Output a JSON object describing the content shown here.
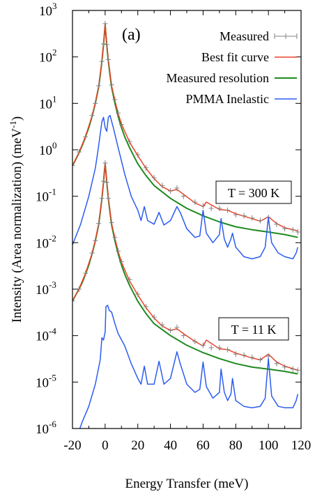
{
  "chart_data": {
    "type": "line",
    "panel_label": "(a)",
    "xlabel": "Energy Transfer   (meV)",
    "ylabel": "Intensity   (Area normalization)   (meV",
    "ylabel_sup": "-1",
    "ylabel_close": ")",
    "xlim": [
      -20,
      120
    ],
    "ylim": [
      1e-06,
      1000
    ],
    "yscale": "log",
    "x_ticks": [
      -20,
      0,
      20,
      40,
      60,
      80,
      100,
      120
    ],
    "y_ticks": [
      {
        "value": 1000,
        "base": "10",
        "exp": "3"
      },
      {
        "value": 100,
        "base": "10",
        "exp": "2"
      },
      {
        "value": 10,
        "base": "10",
        "exp": "1"
      },
      {
        "value": 1,
        "base": "10",
        "exp": "0"
      },
      {
        "value": 0.1,
        "base": "10",
        "exp": "-1"
      },
      {
        "value": 0.01,
        "base": "10",
        "exp": "-2"
      },
      {
        "value": 0.001,
        "base": "10",
        "exp": "-3"
      },
      {
        "value": 0.0001,
        "base": "10",
        "exp": "-4"
      },
      {
        "value": 1e-05,
        "base": "10",
        "exp": "-5"
      },
      {
        "value": 1e-06,
        "base": "10",
        "exp": "-6"
      }
    ],
    "legend": [
      {
        "name": "Measured",
        "color": "#808080",
        "style": "errorbar"
      },
      {
        "name": "Best fit curve",
        "color": "#e8442a",
        "style": "line"
      },
      {
        "name": "Measured resolution",
        "color": "#1e8a1e",
        "style": "line"
      },
      {
        "name": "PMMA Inelastic",
        "color": "#2b5cf0",
        "style": "line"
      }
    ],
    "annotations": [
      {
        "text": "T = 300 K",
        "x": 91,
        "y": 0.2
      },
      {
        "text": "T = 11 K",
        "x": 93,
        "y": 0.0002
      }
    ],
    "series": [
      {
        "name": "Measured resolution",
        "temperature": "T = 300 K",
        "color": "#1e8a1e",
        "x": [
          -20,
          -18,
          -16,
          -14,
          -12,
          -10,
          -8,
          -6,
          -4,
          -3,
          -2,
          -1,
          -0.5,
          0,
          0.5,
          1,
          2,
          3,
          4,
          6,
          8,
          10,
          12,
          15,
          20,
          25,
          30,
          40,
          50,
          60,
          70,
          80,
          90,
          100,
          110,
          118
        ],
        "y": [
          0.45,
          0.62,
          0.86,
          1.25,
          1.9,
          3.0,
          5.2,
          10,
          22,
          40,
          80,
          180,
          300,
          500,
          300,
          180,
          80,
          40,
          22,
          10,
          5.2,
          3.0,
          1.9,
          1.1,
          0.5,
          0.28,
          0.17,
          0.09,
          0.055,
          0.038,
          0.028,
          0.022,
          0.019,
          0.017,
          0.015,
          0.013
        ]
      },
      {
        "name": "Best fit curve",
        "temperature": "T = 300 K",
        "color": "#e8442a",
        "x": [
          -20,
          -16,
          -12,
          -8,
          -6,
          -4,
          -2,
          -1,
          0,
          1,
          2,
          4,
          6,
          8,
          10,
          15,
          20,
          25,
          30,
          35,
          40,
          44,
          48,
          55,
          60,
          62,
          70,
          75,
          80,
          90,
          95,
          100,
          105,
          110,
          118
        ],
        "y": [
          0.46,
          0.88,
          1.95,
          5.4,
          10.5,
          23,
          82,
          185,
          510,
          190,
          85,
          24,
          11.5,
          6.0,
          3.6,
          1.45,
          0.75,
          0.4,
          0.24,
          0.16,
          0.13,
          0.14,
          0.11,
          0.072,
          0.06,
          0.075,
          0.052,
          0.05,
          0.042,
          0.033,
          0.029,
          0.036,
          0.026,
          0.021,
          0.018
        ]
      },
      {
        "name": "Measured",
        "temperature": "T = 300 K",
        "color": "#808080",
        "x": [
          -20,
          -16,
          -12,
          -8,
          -6,
          -4,
          -2,
          -1,
          0,
          1,
          2,
          4,
          6,
          8,
          10,
          15,
          20,
          25,
          30,
          35,
          40,
          44,
          48,
          55,
          60,
          65,
          70,
          75,
          80,
          85,
          90,
          95,
          100,
          105,
          110,
          115,
          118
        ],
        "y": [
          0.46,
          0.9,
          1.9,
          5.5,
          10,
          24,
          80,
          190,
          520,
          185,
          88,
          25,
          12,
          6.2,
          3.5,
          1.5,
          0.78,
          0.41,
          0.25,
          0.17,
          0.13,
          0.15,
          0.1,
          0.075,
          0.062,
          0.055,
          0.055,
          0.05,
          0.04,
          0.038,
          0.034,
          0.03,
          0.035,
          0.025,
          0.02,
          0.019,
          0.017
        ]
      },
      {
        "name": "PMMA Inelastic",
        "temperature": "T = 300 K",
        "color": "#2b5cf0",
        "x": [
          -20,
          -15,
          -10,
          -6,
          -4,
          -2,
          -1,
          0,
          1,
          2,
          3,
          5,
          8,
          12,
          16,
          20,
          22,
          24,
          26,
          30,
          33,
          36,
          40,
          44,
          46,
          50,
          55,
          58,
          60,
          62,
          66,
          70,
          71,
          73,
          75,
          77,
          78,
          80,
          85,
          90,
          95,
          98,
          100,
          102,
          106,
          110,
          115,
          117,
          118
        ],
        "y": [
          0.009,
          0.025,
          0.1,
          0.4,
          1.2,
          4,
          5,
          3,
          2.5,
          5,
          5.5,
          3,
          1.1,
          0.3,
          0.1,
          0.05,
          0.03,
          0.06,
          0.03,
          0.025,
          0.045,
          0.024,
          0.03,
          0.06,
          0.045,
          0.02,
          0.013,
          0.014,
          0.05,
          0.016,
          0.01,
          0.015,
          0.033,
          0.012,
          0.008,
          0.012,
          0.016,
          0.008,
          0.005,
          0.0045,
          0.005,
          0.008,
          0.035,
          0.01,
          0.006,
          0.005,
          0.0045,
          0.006,
          0.008
        ]
      },
      {
        "name": "Measured resolution",
        "temperature": "T = 11 K",
        "color": "#1e8a1e",
        "x": [
          -20,
          -18,
          -16,
          -14,
          -12,
          -10,
          -8,
          -6,
          -4,
          -3,
          -2,
          -1,
          -0.5,
          0,
          0.5,
          1,
          2,
          3,
          4,
          6,
          8,
          10,
          12,
          15,
          20,
          25,
          30,
          40,
          50,
          60,
          70,
          80,
          90,
          100,
          110,
          118
        ],
        "y": [
          0.00055,
          0.00075,
          0.001,
          0.0014,
          0.0021,
          0.0033,
          0.0057,
          0.011,
          0.024,
          0.044,
          0.088,
          0.2,
          0.33,
          0.5,
          0.33,
          0.2,
          0.088,
          0.044,
          0.024,
          0.011,
          0.0057,
          0.0033,
          0.0021,
          0.0012,
          0.00055,
          0.0003,
          0.00018,
          0.0001,
          6.2e-05,
          4.3e-05,
          3.2e-05,
          2.5e-05,
          2.1e-05,
          1.9e-05,
          1.7e-05,
          1.5e-05
        ]
      },
      {
        "name": "Best fit curve",
        "temperature": "T = 11 K",
        "color": "#e8442a",
        "x": [
          -20,
          -16,
          -12,
          -8,
          -6,
          -4,
          -2,
          -1,
          0,
          1,
          2,
          4,
          6,
          8,
          10,
          15,
          20,
          25,
          30,
          35,
          40,
          44,
          48,
          55,
          60,
          62,
          70,
          75,
          80,
          90,
          95,
          100,
          105,
          110,
          118
        ],
        "y": [
          0.00056,
          0.00102,
          0.0022,
          0.0059,
          0.0115,
          0.025,
          0.09,
          0.205,
          0.51,
          0.21,
          0.092,
          0.026,
          0.0125,
          0.0065,
          0.0038,
          0.0015,
          0.00075,
          0.0004,
          0.00024,
          0.00016,
          0.00013,
          0.00014,
          0.00011,
          7.5e-05,
          6e-05,
          8e-05,
          5.2e-05,
          5e-05,
          4.2e-05,
          3.3e-05,
          3e-05,
          4e-05,
          2.7e-05,
          2.2e-05,
          1.8e-05
        ]
      },
      {
        "name": "Measured",
        "temperature": "T = 11 K",
        "color": "#808080",
        "x": [
          -20,
          -16,
          -12,
          -8,
          -6,
          -4,
          -2,
          -1,
          0,
          1,
          2,
          4,
          6,
          8,
          10,
          15,
          20,
          25,
          30,
          35,
          40,
          44,
          48,
          55,
          60,
          65,
          70,
          75,
          80,
          85,
          90,
          95,
          100,
          105,
          110,
          115,
          118
        ],
        "y": [
          0.00056,
          0.001,
          0.0022,
          0.006,
          0.011,
          0.026,
          0.09,
          0.21,
          0.52,
          0.2,
          0.09,
          0.027,
          0.013,
          0.0066,
          0.0039,
          0.0016,
          0.00078,
          0.00042,
          0.00025,
          0.00017,
          0.00013,
          0.00015,
          0.0001,
          7.5e-05,
          6.2e-05,
          5.5e-05,
          5.5e-05,
          5e-05,
          4e-05,
          3.8e-05,
          3.4e-05,
          3e-05,
          3.6e-05,
          2.5e-05,
          2.1e-05,
          1.9e-05,
          1.8e-05
        ]
      },
      {
        "name": "PMMA Inelastic",
        "temperature": "T = 11 K",
        "color": "#2b5cf0",
        "x": [
          -16,
          -14,
          -10,
          -6,
          -3,
          -2,
          -1,
          0,
          0.5,
          1.5,
          2.5,
          4,
          6,
          8,
          12,
          16,
          20,
          22,
          24,
          26,
          30,
          33,
          36,
          40,
          44,
          46,
          50,
          55,
          58,
          60,
          62,
          66,
          70,
          71,
          73,
          75,
          77,
          78,
          80,
          85,
          90,
          95,
          98,
          100,
          102,
          106,
          110,
          115,
          117,
          118
        ],
        "y": [
          9e-07,
          1.4e-06,
          3e-06,
          9e-06,
          3e-05,
          9e-05,
          8e-05,
          0.00012,
          0.00042,
          0.00045,
          0.00035,
          0.00032,
          0.00018,
          0.00011,
          6e-05,
          2.5e-05,
          1.2e-05,
          9e-06,
          2.2e-05,
          9e-06,
          9e-06,
          2.8e-05,
          9e-06,
          1.2e-05,
          4.5e-05,
          2.5e-05,
          9e-06,
          6e-06,
          7e-06,
          2.7e-05,
          8e-06,
          4.5e-06,
          6e-06,
          1.9e-05,
          6e-06,
          4e-06,
          5.5e-06,
          1.2e-05,
          4e-06,
          3e-06,
          2.8e-06,
          3e-06,
          4.5e-06,
          3.2e-05,
          5e-06,
          3e-06,
          2.8e-06,
          2.8e-06,
          4e-06,
          5.5e-06
        ]
      }
    ]
  }
}
